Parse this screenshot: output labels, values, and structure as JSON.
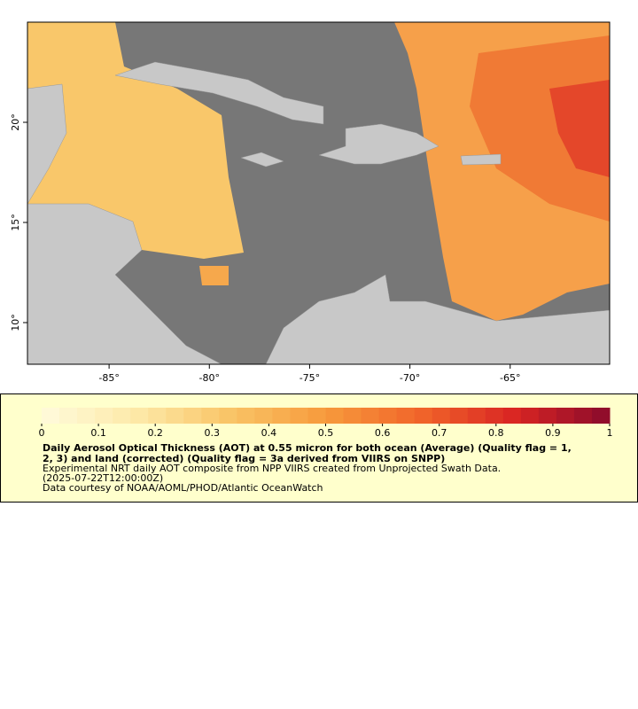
{
  "map": {
    "xlim": [
      -89.07,
      -60.04
    ],
    "ylim": [
      7.92,
      25
    ],
    "xticks": [
      {
        "value": -85,
        "label": "-85°"
      },
      {
        "value": -80,
        "label": "-80°"
      },
      {
        "value": -75,
        "label": "-75°"
      },
      {
        "value": -70,
        "label": "-70°"
      },
      {
        "value": -65,
        "label": "-65°"
      }
    ],
    "yticks": [
      {
        "value": 10,
        "label": "10°"
      },
      {
        "value": 15,
        "label": "15°"
      },
      {
        "value": 20,
        "label": "20°"
      }
    ]
  },
  "colorbar": {
    "ticks": [
      0,
      0.1,
      0.2,
      0.3,
      0.4,
      0.5,
      0.6,
      0.7,
      0.8,
      0.9,
      1
    ],
    "colors": [
      "#fffbdc",
      "#fde9a8",
      "#f9c466",
      "#f79a3c",
      "#f1652a",
      "#d92523",
      "#8a0a2c"
    ]
  },
  "legend": {
    "title": [
      "Daily Aerosol Optical Thickness (AOT) at 0.55 micron for both ocean (Average) (Quality flag = 1,",
      "2, 3) and land (corrected) (Quality flag = 3a derived from VIIRS on SNPP)"
    ],
    "lines": [
      "Experimental NRT daily AOT composite from NPP VIIRS created from Unprojected Swath Data.",
      "(2025-07-22T12:00:00Z)",
      "Data courtesy of NOAA/AOML/PHOD/Atlantic OceanWatch"
    ]
  }
}
